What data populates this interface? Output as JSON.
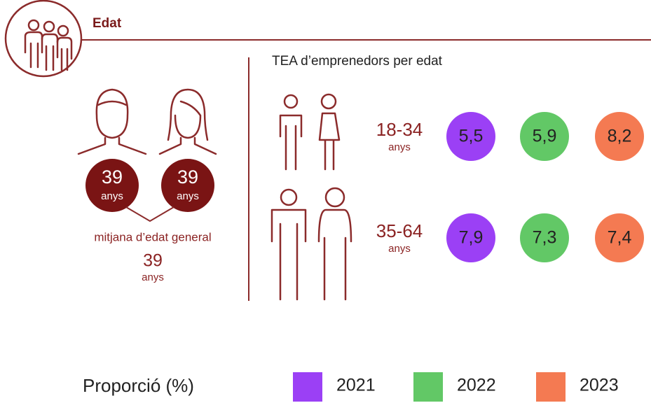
{
  "header": {
    "title": "Edat"
  },
  "average_age": {
    "men": {
      "value": "39",
      "unit": "anys"
    },
    "women": {
      "value": "39",
      "unit": "anys"
    },
    "general": {
      "label": "mitjana d’edat general",
      "value": "39",
      "unit": "anys"
    }
  },
  "tea": {
    "title": "TEA d’emprenedors per edat",
    "rows": [
      {
        "range": "18-34",
        "unit": "anys",
        "values": [
          "5,5",
          "5,9",
          "8,2"
        ]
      },
      {
        "range": "35-64",
        "unit": "anys",
        "values": [
          "7,9",
          "7,3",
          "7,4"
        ]
      }
    ]
  },
  "legend": {
    "title": "Proporció (%)",
    "items": [
      {
        "label": "2021",
        "color": "#9b40f5"
      },
      {
        "label": "2022",
        "color": "#62c866"
      },
      {
        "label": "2023",
        "color": "#f47a52"
      }
    ]
  }
}
